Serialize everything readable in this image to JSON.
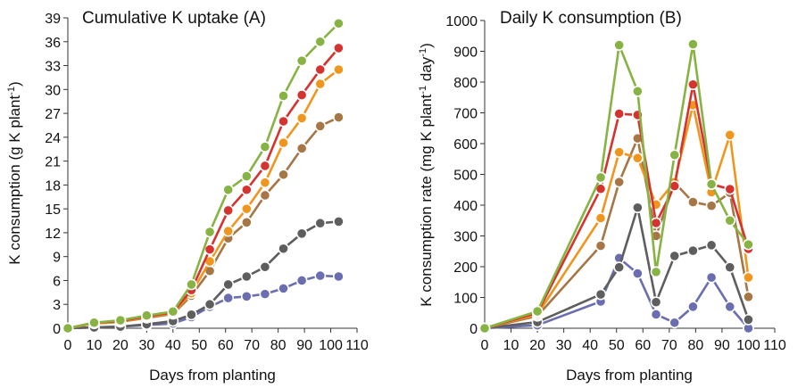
{
  "chart_data": [
    {
      "type": "line",
      "title": "Cumulative K uptake (A)",
      "xlabel": "Days from planting",
      "ylabel_main": "K consumption (g K plant",
      "ylabel_sup": "-1",
      "ylabel_end": ")",
      "xlim": [
        0,
        110
      ],
      "ylim": [
        0,
        39
      ],
      "xticks": [
        0,
        10,
        20,
        30,
        40,
        50,
        60,
        70,
        80,
        90,
        100,
        110
      ],
      "yticks": [
        0,
        3,
        6,
        9,
        12,
        15,
        18,
        21,
        24,
        27,
        30,
        33,
        36,
        39
      ],
      "grid": false,
      "legend": "none",
      "series": [
        {
          "color": "#6a6db0",
          "x": [
            0,
            10,
            20,
            30,
            40,
            47,
            54,
            61,
            68,
            75,
            82,
            89,
            96,
            103
          ],
          "y": [
            0,
            0.1,
            0.2,
            0.4,
            0.6,
            1.4,
            2.7,
            3.8,
            4.0,
            4.3,
            5.0,
            6.0,
            6.6,
            6.5
          ]
        },
        {
          "color": "#5e5e5e",
          "x": [
            0,
            10,
            20,
            30,
            40,
            47,
            54,
            61,
            68,
            75,
            82,
            89,
            96,
            103
          ],
          "y": [
            0,
            0.1,
            0.2,
            0.5,
            0.9,
            1.7,
            3.0,
            5.5,
            6.5,
            7.7,
            10.0,
            11.9,
            13.2,
            13.4
          ]
        },
        {
          "color": "#a67646",
          "x": [
            0,
            10,
            20,
            30,
            40,
            47,
            54,
            61,
            68,
            75,
            82,
            89,
            96,
            103
          ],
          "y": [
            0,
            0.6,
            0.8,
            1.3,
            1.8,
            4.1,
            7.2,
            11.3,
            13.3,
            16.7,
            19.3,
            22.6,
            25.4,
            26.5
          ]
        },
        {
          "color": "#f0961e",
          "x": [
            0,
            10,
            20,
            30,
            40,
            47,
            54,
            61,
            68,
            75,
            82,
            89,
            96,
            103
          ],
          "y": [
            0,
            0.6,
            0.8,
            1.4,
            1.9,
            4.4,
            8.4,
            12.2,
            15.0,
            18.3,
            23.3,
            26.4,
            30.7,
            32.5
          ]
        },
        {
          "color": "#d5332f",
          "x": [
            0,
            10,
            20,
            30,
            40,
            47,
            54,
            61,
            68,
            75,
            82,
            89,
            96,
            103
          ],
          "y": [
            0,
            0.7,
            0.9,
            1.5,
            2.0,
            4.8,
            9.9,
            14.8,
            17.4,
            20.4,
            26.0,
            29.3,
            32.5,
            35.2
          ]
        },
        {
          "color": "#86b343",
          "x": [
            0,
            10,
            20,
            30,
            40,
            47,
            54,
            61,
            68,
            75,
            82,
            89,
            96,
            103
          ],
          "y": [
            0,
            0.7,
            1.0,
            1.6,
            2.1,
            5.5,
            12.1,
            17.4,
            19.1,
            22.8,
            29.2,
            33.6,
            36.0,
            38.3
          ]
        }
      ]
    },
    {
      "type": "line",
      "title": "Daily K consumption (B)",
      "xlabel": "Days from planting",
      "ylabel_main": "K consumption rate (mg K plant",
      "ylabel_sup": "-1",
      "ylabel_mid": " day",
      "ylabel_sup2": "-1",
      "ylabel_end": ")",
      "xlim": [
        0,
        110
      ],
      "ylim": [
        0,
        1000
      ],
      "xticks": [
        0,
        10,
        20,
        30,
        40,
        50,
        60,
        70,
        80,
        90,
        100,
        110
      ],
      "yticks": [
        0,
        100,
        200,
        300,
        400,
        500,
        600,
        700,
        800,
        900,
        1000
      ],
      "grid": false,
      "legend": "none",
      "series": [
        {
          "color": "#6a6db0",
          "x": [
            0,
            20,
            44,
            51,
            58,
            65,
            72,
            79,
            86,
            93,
            100
          ],
          "y": [
            0,
            10,
            87,
            228,
            178,
            45,
            18,
            70,
            165,
            70,
            0
          ]
        },
        {
          "color": "#5e5e5e",
          "x": [
            0,
            20,
            44,
            51,
            58,
            65,
            72,
            79,
            86,
            93,
            100
          ],
          "y": [
            0,
            20,
            110,
            198,
            392,
            85,
            235,
            252,
            270,
            198,
            28
          ]
        },
        {
          "color": "#a67646",
          "x": [
            0,
            20,
            44,
            51,
            58,
            65,
            72,
            79,
            86,
            93,
            100
          ],
          "y": [
            0,
            40,
            268,
            475,
            617,
            300,
            473,
            410,
            398,
            440,
            102
          ]
        },
        {
          "color": "#f0961e",
          "x": [
            0,
            20,
            44,
            51,
            58,
            65,
            72,
            79,
            86,
            93,
            100
          ],
          "y": [
            0,
            45,
            358,
            572,
            553,
            402,
            475,
            725,
            442,
            628,
            165
          ]
        },
        {
          "color": "#d5332f",
          "x": [
            0,
            20,
            44,
            51,
            58,
            65,
            72,
            79,
            86,
            93,
            100
          ],
          "y": [
            0,
            50,
            453,
            697,
            693,
            342,
            462,
            792,
            468,
            452,
            258
          ]
        },
        {
          "color": "#86b343",
          "x": [
            0,
            20,
            44,
            51,
            58,
            65,
            72,
            79,
            86,
            93,
            100
          ],
          "y": [
            0,
            55,
            490,
            920,
            770,
            183,
            563,
            923,
            468,
            350,
            272
          ]
        }
      ]
    }
  ]
}
